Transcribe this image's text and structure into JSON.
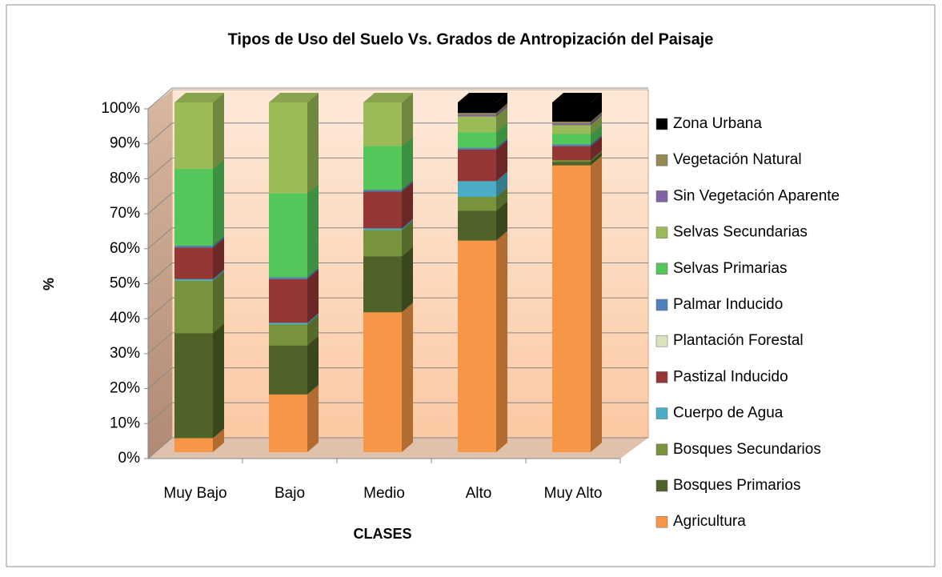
{
  "chart_data": {
    "type": "bar",
    "stacked": true,
    "title": "Tipos de Uso del Suelo Vs. Grados de Antropización del Paisaje",
    "x_label": "CLASES",
    "y_label": "%",
    "categories": [
      "Muy Bajo",
      "Bajo",
      "Medio",
      "Alto",
      "Muy Alto"
    ],
    "series": [
      {
        "name": "Agricultura",
        "color": "#f79646",
        "values": [
          4,
          16.5,
          40,
          60.5,
          82
        ]
      },
      {
        "name": "Bosques Primarios",
        "color": "#4f6228",
        "values": [
          30,
          14,
          16,
          8.5,
          1
        ]
      },
      {
        "name": "Bosques Secundarios",
        "color": "#77933c",
        "values": [
          15,
          6,
          7.5,
          4,
          0.5
        ]
      },
      {
        "name": "Cuerpo de Agua",
        "color": "#4bacc6",
        "values": [
          0.5,
          0.5,
          0.5,
          4.5,
          0
        ]
      },
      {
        "name": "Pastizal Inducido",
        "color": "#953735",
        "values": [
          9,
          12.5,
          10.5,
          9,
          4
        ]
      },
      {
        "name": "Plantación Forestal",
        "color": "#d7e4bd",
        "values": [
          0,
          0,
          0,
          0,
          0
        ]
      },
      {
        "name": "Palmar Inducido",
        "color": "#4f81bd",
        "values": [
          0.5,
          0.5,
          0.5,
          0.5,
          0.5
        ]
      },
      {
        "name": "Selvas Primarias",
        "color": "#55c75a",
        "values": [
          22,
          24,
          12.5,
          4.5,
          3
        ]
      },
      {
        "name": "Selvas Secundarias",
        "color": "#9bbb59",
        "values": [
          19,
          26,
          12.5,
          4.5,
          2.5
        ]
      },
      {
        "name": "Sin Vegetación Aparente",
        "color": "#8064a2",
        "values": [
          0,
          0,
          0,
          0.5,
          0.5
        ]
      },
      {
        "name": "Vegetación Natural",
        "color": "#948a54",
        "values": [
          0,
          0,
          0,
          0.5,
          0.5
        ]
      },
      {
        "name": "Zona Urbana",
        "color": "#000000",
        "values": [
          0,
          0,
          0,
          3,
          5.5
        ]
      }
    ],
    "ylim": [
      0,
      100
    ],
    "yticks": [
      {
        "value": 0,
        "label": "0%"
      },
      {
        "value": 10,
        "label": "10%"
      },
      {
        "value": 20,
        "label": "20%"
      },
      {
        "value": 30,
        "label": "30%"
      },
      {
        "value": 40,
        "label": "40%"
      },
      {
        "value": 50,
        "label": "50%"
      },
      {
        "value": 60,
        "label": "60%"
      },
      {
        "value": 70,
        "label": "70%"
      },
      {
        "value": 80,
        "label": "80%"
      },
      {
        "value": 90,
        "label": "90%"
      },
      {
        "value": 100,
        "label": "100%"
      }
    ],
    "grid": true,
    "legend": "right"
  }
}
